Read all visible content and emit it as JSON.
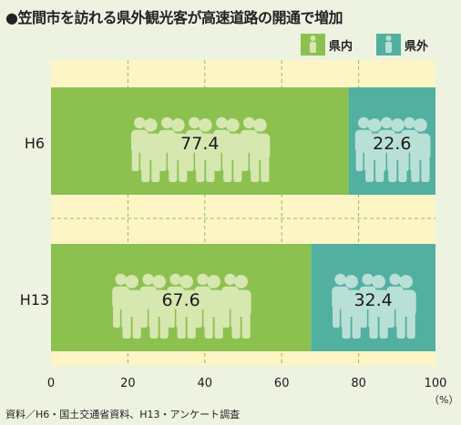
{
  "title": "●笠間市を訪れる県外観光客が高速道路の開通で増加",
  "source": "資料／H6・国土交通省資料、H13・アンケート調査",
  "unit": "（%）",
  "colors": {
    "domestic": "#8cc150",
    "foreign": "#52b0a1",
    "frame": "#fdf5c6",
    "figure": "#d6e7b0",
    "figure_alt": "#b9e0d6"
  },
  "chart_data": {
    "type": "bar",
    "orientation": "horizontal",
    "stacked": true,
    "percent": true,
    "categories": [
      "H6",
      "H13"
    ],
    "series": [
      {
        "name": "県内",
        "values": [
          77.4,
          67.6
        ]
      },
      {
        "name": "県外",
        "values": [
          22.6,
          32.4
        ]
      }
    ],
    "xlim": [
      0,
      100
    ],
    "xticks": [
      0,
      20,
      40,
      60,
      80,
      100
    ],
    "grid": true,
    "legend": "top-right"
  }
}
